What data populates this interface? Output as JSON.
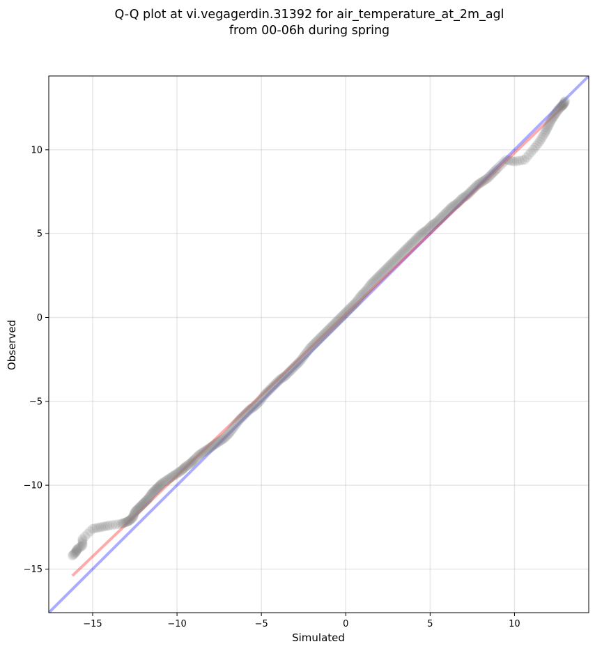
{
  "chart_data": {
    "type": "scatter",
    "title_lines": [
      "Q-Q plot at vi.vegagerdin.31392 for air_temperature_at_2m_agl",
      "from 00-06h during spring"
    ],
    "xlabel": "Simulated",
    "ylabel": "Observed",
    "xlim": [
      -17.6,
      14.4
    ],
    "ylim": [
      -17.6,
      14.4
    ],
    "xticks": [
      -15,
      -10,
      -5,
      0,
      5,
      10
    ],
    "yticks": [
      -15,
      -10,
      -5,
      0,
      5,
      10
    ],
    "xtick_labels": [
      "−15",
      "−10",
      "−5",
      "0",
      "5",
      "10"
    ],
    "ytick_labels": [
      "−15",
      "−10",
      "−5",
      "0",
      "5",
      "10"
    ],
    "grid": true,
    "identity_line": {
      "color": "#0000ff"
    },
    "fit_line": {
      "x": [
        -16.2,
        13.0
      ],
      "y": [
        -15.4,
        12.7
      ],
      "color": "#ff0000"
    },
    "point_color": "#808080",
    "series": [
      {
        "x": [
          -16.2,
          -16.0,
          -15.9,
          -15.6,
          -15.6,
          -15.0,
          -14.5,
          -14.0,
          -13.3,
          -13.0,
          -12.8,
          -12.6,
          -12.5,
          -12.3,
          -12.1,
          -11.9,
          -11.7,
          -11.5,
          -11.3,
          -11.1,
          -10.9,
          -10.6,
          -10.3,
          -10.0,
          -9.7,
          -9.5,
          -9.2,
          -9.0,
          -8.7,
          -8.4,
          -8.1,
          -7.8,
          -7.5,
          -7.2,
          -6.9,
          -6.6,
          -6.3,
          -6.0,
          -5.7,
          -5.4,
          -5.1,
          -4.8,
          -4.5,
          -4.2,
          -3.9,
          -3.6,
          -3.3,
          -3.0,
          -2.7,
          -2.4,
          -2.1,
          -1.8,
          -1.5,
          -1.2,
          -0.9,
          -0.6,
          -0.3,
          0.0,
          0.3,
          0.6,
          0.9,
          1.2,
          1.5,
          1.8,
          2.1,
          2.4,
          2.7,
          3.0,
          3.3,
          3.6,
          3.9,
          4.2,
          4.5,
          4.8,
          5.1,
          5.4,
          5.7,
          6.0,
          6.3,
          6.6,
          6.9,
          7.2,
          7.5,
          7.8,
          8.1,
          8.4,
          8.7,
          9.0,
          9.5,
          10.0,
          10.6,
          11.1,
          11.5,
          11.8,
          12.0,
          12.2,
          12.4,
          12.6,
          12.8,
          12.9,
          13.0
        ],
        "y": [
          -14.2,
          -14.0,
          -13.8,
          -13.6,
          -13.2,
          -12.6,
          -12.5,
          -12.4,
          -12.3,
          -12.2,
          -12.1,
          -11.9,
          -11.6,
          -11.4,
          -11.2,
          -11.0,
          -10.8,
          -10.5,
          -10.3,
          -10.1,
          -9.9,
          -9.7,
          -9.5,
          -9.3,
          -9.1,
          -8.9,
          -8.7,
          -8.5,
          -8.2,
          -8.0,
          -7.8,
          -7.6,
          -7.4,
          -7.2,
          -6.9,
          -6.5,
          -6.1,
          -5.8,
          -5.5,
          -5.3,
          -5.0,
          -4.6,
          -4.3,
          -4.0,
          -3.7,
          -3.5,
          -3.2,
          -2.9,
          -2.6,
          -2.2,
          -1.8,
          -1.5,
          -1.2,
          -0.9,
          -0.6,
          -0.3,
          0.0,
          0.3,
          0.6,
          0.9,
          1.3,
          1.6,
          2.0,
          2.3,
          2.6,
          2.9,
          3.2,
          3.5,
          3.8,
          4.1,
          4.4,
          4.7,
          5.0,
          5.2,
          5.5,
          5.7,
          6.0,
          6.3,
          6.6,
          6.8,
          7.1,
          7.3,
          7.6,
          7.9,
          8.1,
          8.3,
          8.6,
          8.9,
          9.4,
          9.3,
          9.4,
          10.0,
          10.5,
          11.0,
          11.4,
          11.8,
          12.1,
          12.4,
          12.6,
          12.7,
          12.9
        ]
      }
    ]
  }
}
